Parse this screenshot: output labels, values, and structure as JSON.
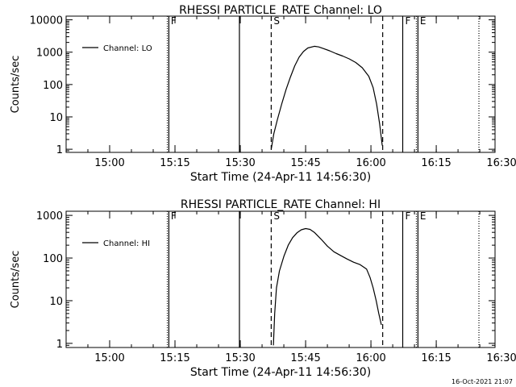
{
  "chart_data": [
    {
      "type": "line",
      "title": "RHESSI PARTICLE_RATE Channel: LO",
      "xlabel": "Start Time (24-Apr-11 14:56:30)",
      "ylabel": "Counts/sec",
      "yscale": "log",
      "xlim_minutes": [
        -6.5,
        92
      ],
      "ylim": [
        0.8,
        13000
      ],
      "x_ticks": [
        {
          "min": 3.5,
          "label": "15:00"
        },
        {
          "min": 18.5,
          "label": "15:15"
        },
        {
          "min": 33.5,
          "label": "15:30"
        },
        {
          "min": 48.5,
          "label": "15:45"
        },
        {
          "min": 63.5,
          "label": "16:00"
        },
        {
          "min": 78.5,
          "label": "16:15"
        },
        {
          "min": 93.5,
          "label": "16:30"
        }
      ],
      "y_ticks": [
        {
          "v": 1,
          "label": "1"
        },
        {
          "v": 10,
          "label": "10"
        },
        {
          "v": 100,
          "label": "100"
        },
        {
          "v": 1000,
          "label": "1000"
        },
        {
          "v": 10000,
          "label": "10000"
        }
      ],
      "legend": {
        "label": "Channel: LO",
        "position": "top-left"
      },
      "markers": [
        {
          "min": 17.0,
          "label": "F",
          "style": "dotted-solid"
        },
        {
          "min": 33.3,
          "label": "",
          "style": "solid"
        },
        {
          "min": 40.6,
          "label": "S",
          "style": "dashed"
        },
        {
          "min": 66.2,
          "label": "",
          "style": "dashed"
        },
        {
          "min": 70.8,
          "label": "F",
          "style": "solid"
        },
        {
          "min": 74.2,
          "label": "E",
          "style": "dotted-solid"
        },
        {
          "min": 88.3,
          "label": "",
          "style": "dotted"
        }
      ],
      "series": [
        {
          "name": "Channel: LO",
          "x": [
            40.6,
            41.2,
            42.0,
            43.0,
            44.0,
            45.0,
            46.0,
            47.0,
            48.0,
            49.0,
            50.5,
            51.5,
            52.5,
            54.0,
            55.5,
            57.0,
            58.5,
            60.0,
            61.5,
            63.0,
            64.0,
            64.8,
            65.5,
            66.1
          ],
          "y": [
            1.0,
            3,
            8,
            25,
            70,
            170,
            380,
            700,
            1050,
            1350,
            1520,
            1450,
            1300,
            1100,
            900,
            760,
            620,
            480,
            330,
            180,
            80,
            25,
            6,
            1.3
          ]
        }
      ]
    },
    {
      "type": "line",
      "title": "RHESSI PARTICLE_RATE Channel: HI",
      "xlabel": "Start Time (24-Apr-11 14:56:30)",
      "ylabel": "Counts/sec",
      "yscale": "log",
      "xlim_minutes": [
        -6.5,
        92
      ],
      "ylim": [
        0.8,
        1250
      ],
      "x_ticks": [
        {
          "min": 3.5,
          "label": "15:00"
        },
        {
          "min": 18.5,
          "label": "15:15"
        },
        {
          "min": 33.5,
          "label": "15:30"
        },
        {
          "min": 48.5,
          "label": "15:45"
        },
        {
          "min": 63.5,
          "label": "16:00"
        },
        {
          "min": 78.5,
          "label": "16:15"
        },
        {
          "min": 93.5,
          "label": "16:30"
        }
      ],
      "y_ticks": [
        {
          "v": 1,
          "label": "1"
        },
        {
          "v": 10,
          "label": "10"
        },
        {
          "v": 100,
          "label": "100"
        },
        {
          "v": 1000,
          "label": "1000"
        }
      ],
      "legend": {
        "label": "Channel: HI",
        "position": "top-left"
      },
      "markers": [
        {
          "min": 17.0,
          "label": "F",
          "style": "dotted-solid"
        },
        {
          "min": 33.3,
          "label": "",
          "style": "solid"
        },
        {
          "min": 40.6,
          "label": "S",
          "style": "dashed"
        },
        {
          "min": 66.2,
          "label": "",
          "style": "dashed"
        },
        {
          "min": 70.8,
          "label": "F",
          "style": "solid"
        },
        {
          "min": 74.2,
          "label": "E",
          "style": "dotted-solid"
        },
        {
          "min": 88.3,
          "label": "",
          "style": "dotted"
        }
      ],
      "series": [
        {
          "name": "Channel: HI",
          "x": [
            41.1,
            41.4,
            41.8,
            42.5,
            43.5,
            44.5,
            45.5,
            46.5,
            47.5,
            48.5,
            49.5,
            50.5,
            52.0,
            53.5,
            55.0,
            56.5,
            58.0,
            59.5,
            61.0,
            62.5,
            63.3,
            64.0,
            64.7,
            65.3,
            65.9
          ],
          "y": [
            0.9,
            5,
            20,
            50,
            110,
            200,
            300,
            390,
            460,
            490,
            470,
            400,
            280,
            190,
            140,
            115,
            95,
            80,
            70,
            55,
            35,
            20,
            10,
            5,
            2.7
          ]
        }
      ]
    }
  ],
  "timestamp": "16-Oct-2021 21:07"
}
